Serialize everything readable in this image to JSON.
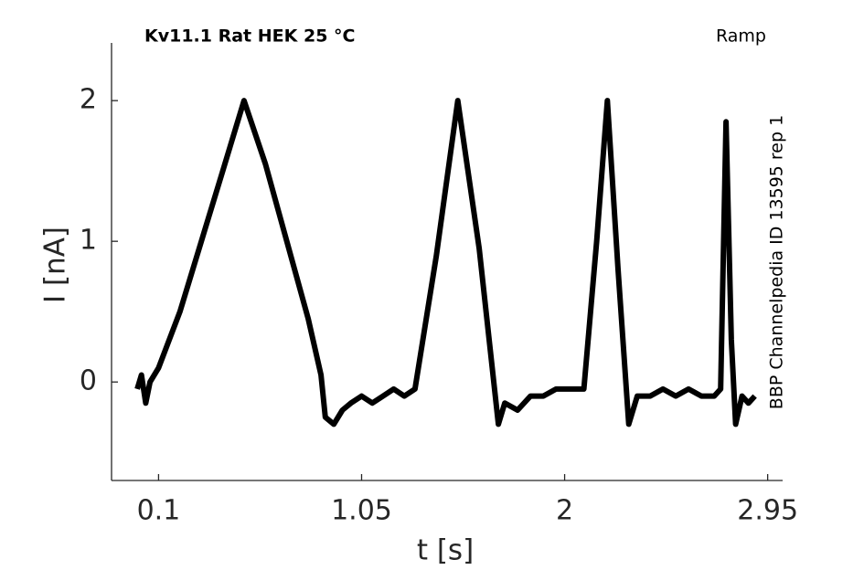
{
  "chart_data": {
    "type": "line",
    "title": "Kv11.1  Rat  HEK  25 °C",
    "subtitle": "Ramp",
    "annotation": "BBP Channelpedia ID 13595 rep 1",
    "x_label": "t [s]",
    "y_label": "I [nA]",
    "xlim": [
      -0.12,
      3.02
    ],
    "ylim": [
      -0.7,
      2.41
    ],
    "xticks": [
      0.1,
      1.05,
      2,
      2.95
    ],
    "yticks": [
      0,
      1,
      2
    ],
    "grid": false,
    "series": [
      {
        "color": "#000000",
        "x": [
          0,
          0.02,
          0.04,
          0.06,
          0.1,
          0.2,
          0.3,
          0.4,
          0.5,
          0.6,
          0.7,
          0.8,
          0.86,
          0.88,
          0.92,
          0.96,
          1.0,
          1.05,
          1.1,
          1.15,
          1.2,
          1.25,
          1.3,
          1.4,
          1.5,
          1.6,
          1.69,
          1.72,
          1.78,
          1.84,
          1.9,
          1.96,
          2.02,
          2.09,
          2.15,
          2.2,
          2.25,
          2.3,
          2.34,
          2.4,
          2.46,
          2.52,
          2.58,
          2.64,
          2.7,
          2.73,
          2.755,
          2.78,
          2.8,
          2.83,
          2.86,
          2.89
        ],
        "values": [
          -0.05,
          0.05,
          -0.15,
          0.0,
          0.1,
          0.5,
          1.0,
          1.5,
          2.0,
          1.55,
          1.0,
          0.45,
          0.05,
          -0.25,
          -0.3,
          -0.2,
          -0.15,
          -0.1,
          -0.15,
          -0.1,
          -0.05,
          -0.1,
          -0.05,
          0.9,
          2.0,
          0.95,
          -0.3,
          -0.15,
          -0.2,
          -0.1,
          -0.1,
          -0.05,
          -0.05,
          -0.05,
          1.0,
          2.0,
          0.8,
          -0.3,
          -0.1,
          -0.1,
          -0.05,
          -0.1,
          -0.05,
          -0.1,
          -0.1,
          -0.05,
          1.85,
          0.3,
          -0.3,
          -0.1,
          -0.15,
          -0.1
        ]
      }
    ]
  }
}
